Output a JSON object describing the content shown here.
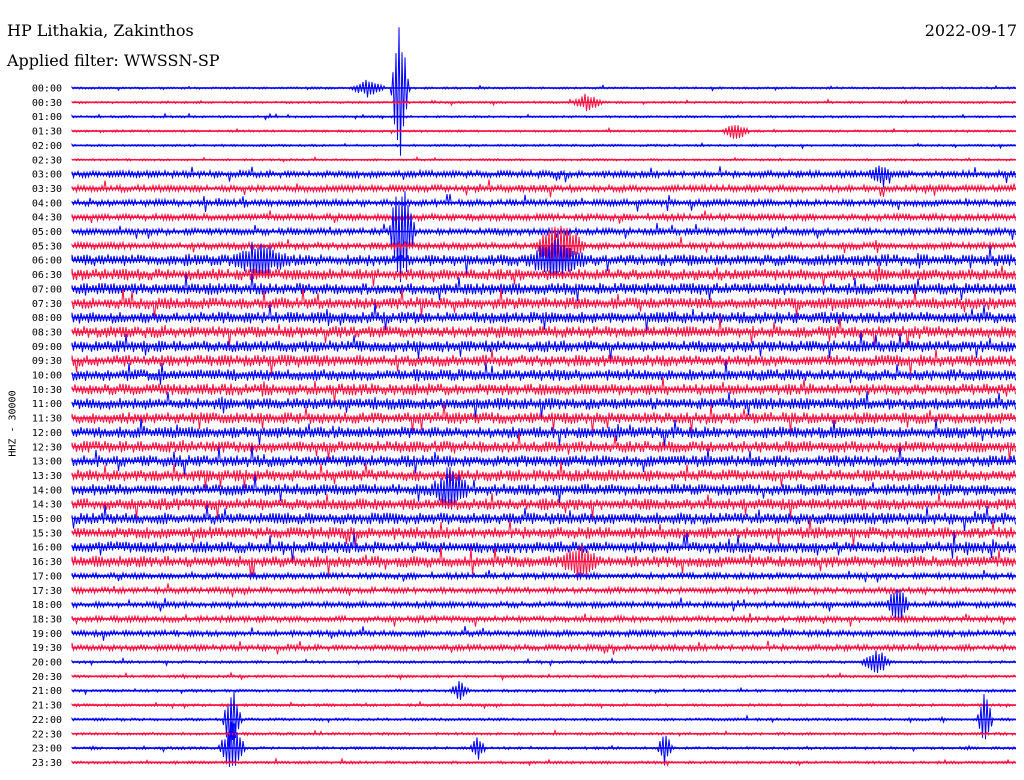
{
  "header": {
    "station": "HP Lithakia, Zakinthos",
    "filter": "Applied filter: WWSSN-SP",
    "date": "2022-09-17"
  },
  "chart_data": {
    "type": "line",
    "title": "HP Lithakia, Zakinthos",
    "subtitle": "Applied filter: WWSSN-SP",
    "ylabel": "HHZ - 30000",
    "xlabel": "",
    "grid": false,
    "series_colors": [
      "#0000ff",
      "#ff1040"
    ],
    "rows": [
      {
        "label": "00:00",
        "color": "#0000ff"
      },
      {
        "label": "00:30",
        "color": "#ff1040"
      },
      {
        "label": "01:00",
        "color": "#0000ff"
      },
      {
        "label": "01:30",
        "color": "#ff1040"
      },
      {
        "label": "02:00",
        "color": "#0000ff"
      },
      {
        "label": "02:30",
        "color": "#ff1040"
      },
      {
        "label": "03:00",
        "color": "#0000ff"
      },
      {
        "label": "03:30",
        "color": "#ff1040"
      },
      {
        "label": "04:00",
        "color": "#0000ff"
      },
      {
        "label": "04:30",
        "color": "#ff1040"
      },
      {
        "label": "05:00",
        "color": "#0000ff"
      },
      {
        "label": "05:30",
        "color": "#ff1040"
      },
      {
        "label": "06:00",
        "color": "#0000ff"
      },
      {
        "label": "06:30",
        "color": "#ff1040"
      },
      {
        "label": "07:00",
        "color": "#0000ff"
      },
      {
        "label": "07:30",
        "color": "#ff1040"
      },
      {
        "label": "08:00",
        "color": "#0000ff"
      },
      {
        "label": "08:30",
        "color": "#ff1040"
      },
      {
        "label": "09:00",
        "color": "#0000ff"
      },
      {
        "label": "09:30",
        "color": "#ff1040"
      },
      {
        "label": "10:00",
        "color": "#0000ff"
      },
      {
        "label": "10:30",
        "color": "#ff1040"
      },
      {
        "label": "11:00",
        "color": "#0000ff"
      },
      {
        "label": "11:30",
        "color": "#ff1040"
      },
      {
        "label": "12:00",
        "color": "#0000ff"
      },
      {
        "label": "12:30",
        "color": "#ff1040"
      },
      {
        "label": "13:00",
        "color": "#0000ff"
      },
      {
        "label": "13:30",
        "color": "#ff1040"
      },
      {
        "label": "14:00",
        "color": "#0000ff"
      },
      {
        "label": "14:30",
        "color": "#ff1040"
      },
      {
        "label": "15:00",
        "color": "#0000ff"
      },
      {
        "label": "15:30",
        "color": "#ff1040"
      },
      {
        "label": "16:00",
        "color": "#0000ff"
      },
      {
        "label": "16:30",
        "color": "#ff1040"
      },
      {
        "label": "17:00",
        "color": "#0000ff"
      },
      {
        "label": "17:30",
        "color": "#ff1040"
      },
      {
        "label": "18:00",
        "color": "#0000ff"
      },
      {
        "label": "18:30",
        "color": "#ff1040"
      },
      {
        "label": "19:00",
        "color": "#0000ff"
      },
      {
        "label": "19:30",
        "color": "#ff1040"
      },
      {
        "label": "20:00",
        "color": "#0000ff"
      },
      {
        "label": "20:30",
        "color": "#ff1040"
      },
      {
        "label": "21:00",
        "color": "#0000ff"
      },
      {
        "label": "21:30",
        "color": "#ff1040"
      },
      {
        "label": "22:00",
        "color": "#0000ff"
      },
      {
        "label": "22:30",
        "color": "#ff1040"
      },
      {
        "label": "23:00",
        "color": "#0000ff"
      },
      {
        "label": "23:30",
        "color": "#ff1040"
      }
    ]
  }
}
